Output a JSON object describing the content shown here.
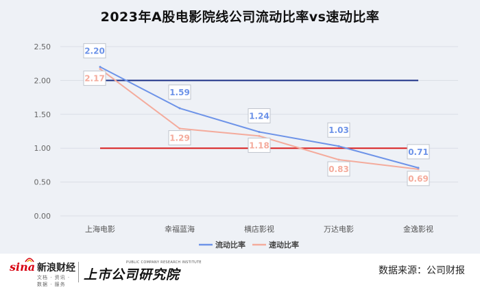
{
  "title": "2023年A股电影院线公司流动比率vs速动比率",
  "chart_data": {
    "type": "line",
    "categories": [
      "上海电影",
      "幸福蓝海",
      "横店影视",
      "万达电影",
      "金逸影视"
    ],
    "series": [
      {
        "name": "流动比率",
        "values": [
          2.2,
          1.59,
          1.24,
          1.03,
          0.71
        ],
        "labels": [
          "2.20",
          "1.59",
          "1.24",
          "1.03",
          "0.71"
        ],
        "color": "#6d93e8"
      },
      {
        "name": "速动比率",
        "values": [
          2.17,
          1.29,
          1.18,
          0.83,
          0.69
        ],
        "labels": [
          "2.17",
          "1.29",
          "1.18",
          "0.83",
          "0.69"
        ],
        "color": "#f4ab9c"
      }
    ],
    "reference_lines": [
      {
        "value": 2.0,
        "color": "#1a2f86"
      },
      {
        "value": 1.0,
        "color": "#d81e1e"
      }
    ],
    "yticks": [
      "0.00",
      "0.50",
      "1.00",
      "1.50",
      "2.00",
      "2.50"
    ],
    "ylim": [
      0,
      2.5
    ],
    "grid": true,
    "legend_position": "bottom"
  },
  "footer": {
    "sina_brand": "sina",
    "sina_name": "新浪财经",
    "sina_tagline": "文档 · 资讯 · 数据 · 服务",
    "institute_en": "PUBLIC COMPANY RESEARCH INSTITUTE",
    "institute_cn": "上市公司研究院",
    "source": "数据来源：公司财报"
  },
  "colors": {
    "background": "#eef1f6",
    "grid": "#d9dde5"
  }
}
